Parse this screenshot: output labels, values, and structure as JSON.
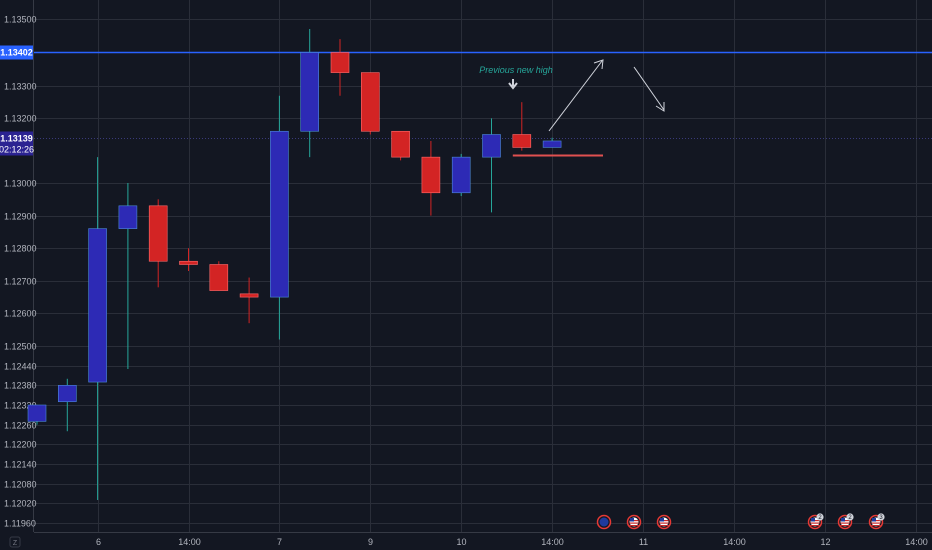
{
  "chart_data": {
    "type": "candlestick",
    "title": "",
    "xlabel": "",
    "ylabel": "",
    "y_ticks": [
      1.135,
      1.133,
      1.132,
      1.13,
      1.129,
      1.128,
      1.127,
      1.126,
      1.125,
      1.1244,
      1.1238,
      1.1232,
      1.1226,
      1.122,
      1.1214,
      1.1208,
      1.1202,
      1.1196
    ],
    "y_tick_labels": [
      "1.13500",
      "1.13300",
      "1.13200",
      "1.13000",
      "1.12900",
      "1.12800",
      "1.12700",
      "1.12600",
      "1.12500",
      "1.12440",
      "1.12380",
      "1.12320",
      "1.12260",
      "1.12200",
      "1.12140",
      "1.12080",
      "1.12020",
      "1.11960"
    ],
    "x_tick_labels": [
      "6",
      "14:00",
      "7",
      "9",
      "10",
      "14:00",
      "11",
      "14:00",
      "12",
      "14:00"
    ],
    "up_color": "#2d2ab5",
    "down_color": "#d32424",
    "candles": [
      {
        "o": 1.1227,
        "h": 1.1232,
        "l": 1.1226,
        "c": 1.1232
      },
      {
        "o": 1.1233,
        "h": 1.124,
        "l": 1.1224,
        "c": 1.1238
      },
      {
        "o": 1.1239,
        "h": 1.1308,
        "l": 1.1203,
        "c": 1.1286
      },
      {
        "o": 1.1286,
        "h": 1.13,
        "l": 1.1243,
        "c": 1.1293
      },
      {
        "o": 1.1293,
        "h": 1.1295,
        "l": 1.1268,
        "c": 1.1276
      },
      {
        "o": 1.1276,
        "h": 1.128,
        "l": 1.1273,
        "c": 1.1275
      },
      {
        "o": 1.1275,
        "h": 1.1276,
        "l": 1.1267,
        "c": 1.1267
      },
      {
        "o": 1.1266,
        "h": 1.1271,
        "l": 1.1257,
        "c": 1.1265
      },
      {
        "o": 1.1265,
        "h": 1.1327,
        "l": 1.1252,
        "c": 1.1316
      },
      {
        "o": 1.1316,
        "h": 1.1347,
        "l": 1.1308,
        "c": 1.134
      },
      {
        "o": 1.134,
        "h": 1.1344,
        "l": 1.1327,
        "c": 1.1334
      },
      {
        "o": 1.1334,
        "h": 1.1334,
        "l": 1.1315,
        "c": 1.1316
      },
      {
        "o": 1.1316,
        "h": 1.1316,
        "l": 1.1307,
        "c": 1.1308
      },
      {
        "o": 1.1308,
        "h": 1.1313,
        "l": 1.129,
        "c": 1.1297
      },
      {
        "o": 1.1297,
        "h": 1.1309,
        "l": 1.1296,
        "c": 1.1308
      },
      {
        "o": 1.1308,
        "h": 1.132,
        "l": 1.1291,
        "c": 1.1315
      },
      {
        "o": 1.1315,
        "h": 1.1325,
        "l": 1.131,
        "c": 1.1311
      },
      {
        "o": 1.1311,
        "h": 1.1314,
        "l": 1.1311,
        "c": 1.1313
      }
    ],
    "resistance_level": {
      "value": 1.13402,
      "label": "1.13402",
      "color": "#2962ff"
    },
    "current_price": {
      "value": 1.13139,
      "label": "1.13139",
      "countdown": "02:12:26",
      "color": "#2b2392"
    },
    "support_segment": {
      "value": 1.13085,
      "color": "#e05050"
    },
    "annotation": {
      "text": "Previous new high",
      "color": "#26a69a"
    },
    "projection_arrows_color": "#d1d4dc",
    "event_markers": [
      {
        "flag": "eu",
        "count": ""
      },
      {
        "flag": "us",
        "count": ""
      },
      {
        "flag": "us",
        "count": ""
      },
      {
        "flag": "us",
        "count": "2"
      },
      {
        "flag": "us",
        "count": "2"
      },
      {
        "flag": "us",
        "count": "3"
      }
    ],
    "grid": true,
    "axis_corner": "Z"
  }
}
